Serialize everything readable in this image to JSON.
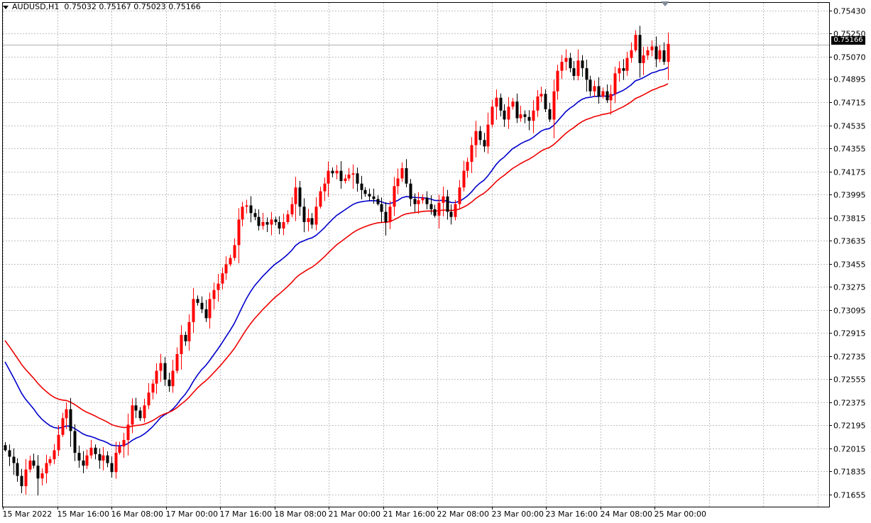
{
  "chart_data": {
    "type": "candlestick",
    "symbol_label": "AUDUSD,H1",
    "ohlc_label": "0.75032 0.75167 0.75023 0.75166",
    "current_price_label": "0.75166",
    "current_price": 0.75166,
    "ylim": [
      0.7156,
      0.7549
    ],
    "y_ticks": [
      "0.75430",
      "0.75250",
      "0.75070",
      "0.74895",
      "0.74715",
      "0.74535",
      "0.74355",
      "0.74175",
      "0.73995",
      "0.73815",
      "0.73635",
      "0.73455",
      "0.73275",
      "0.73095",
      "0.72915",
      "0.72735",
      "0.72555",
      "0.72375",
      "0.72195",
      "0.72015",
      "0.71835",
      "0.71655"
    ],
    "x_ticks": [
      "15 Mar 2022",
      "15 Mar 16:00",
      "16 Mar 08:00",
      "17 Mar 00:00",
      "17 Mar 16:00",
      "18 Mar 08:00",
      "21 Mar 00:00",
      "21 Mar 16:00",
      "22 Mar 08:00",
      "23 Mar 00:00",
      "23 Mar 16:00",
      "24 Mar 08:00",
      "25 Mar 00:00"
    ],
    "grid": true,
    "colors": {
      "bull": "#ff0000",
      "bear": "#000000",
      "ma_fast": "#0000cc",
      "ma_slow": "#ee0000",
      "grid": "#c0c0c0",
      "price_line": "#b0b0b0"
    },
    "candle_closes": [
      0.72,
      0.7195,
      0.719,
      0.718,
      0.7172,
      0.7185,
      0.7192,
      0.7188,
      0.7178,
      0.7182,
      0.719,
      0.7193,
      0.72,
      0.7212,
      0.7225,
      0.7232,
      0.7215,
      0.7198,
      0.7192,
      0.7188,
      0.7196,
      0.7202,
      0.7197,
      0.7192,
      0.7196,
      0.719,
      0.7183,
      0.7198,
      0.7203,
      0.7208,
      0.722,
      0.7235,
      0.7231,
      0.7225,
      0.7235,
      0.7245,
      0.7252,
      0.7262,
      0.7268,
      0.7255,
      0.725,
      0.7262,
      0.7275,
      0.729,
      0.7285,
      0.73,
      0.7318,
      0.7315,
      0.731,
      0.7303,
      0.7318,
      0.7325,
      0.733,
      0.7338,
      0.7345,
      0.735,
      0.736,
      0.738,
      0.739,
      0.7391,
      0.7385,
      0.7382,
      0.7375,
      0.7378,
      0.7376,
      0.738,
      0.7378,
      0.7373,
      0.7378,
      0.7384,
      0.7392,
      0.7405,
      0.739,
      0.7378,
      0.7381,
      0.7376,
      0.739,
      0.7402,
      0.7408,
      0.7418,
      0.7416,
      0.7418,
      0.741,
      0.7412,
      0.7415,
      0.7416,
      0.7408,
      0.7403,
      0.74,
      0.7398,
      0.7396,
      0.7392,
      0.7386,
      0.7378,
      0.739,
      0.7406,
      0.7412,
      0.742,
      0.7408,
      0.7396,
      0.7392,
      0.7395,
      0.7397,
      0.7392,
      0.7388,
      0.7383,
      0.7393,
      0.7398,
      0.7386,
      0.7382,
      0.7392,
      0.7405,
      0.7418,
      0.7425,
      0.7438,
      0.7449,
      0.7442,
      0.7437,
      0.7454,
      0.7468,
      0.7475,
      0.7465,
      0.7458,
      0.7468,
      0.7472,
      0.7459,
      0.7462,
      0.746,
      0.7457,
      0.7465,
      0.7476,
      0.7478,
      0.7466,
      0.7458,
      0.748,
      0.7496,
      0.7503,
      0.7506,
      0.7498,
      0.7492,
      0.7504,
      0.7498,
      0.7489,
      0.748,
      0.7484,
      0.7476,
      0.748,
      0.7473,
      0.7478,
      0.7494,
      0.7498,
      0.7496,
      0.7506,
      0.7512,
      0.7524,
      0.7502,
      0.7508,
      0.7512,
      0.7515,
      0.7505,
      0.7512,
      0.7503,
      0.7517
    ],
    "ma_fast_start_value": 0.7275,
    "ma_slow_start_value": 0.729
  }
}
